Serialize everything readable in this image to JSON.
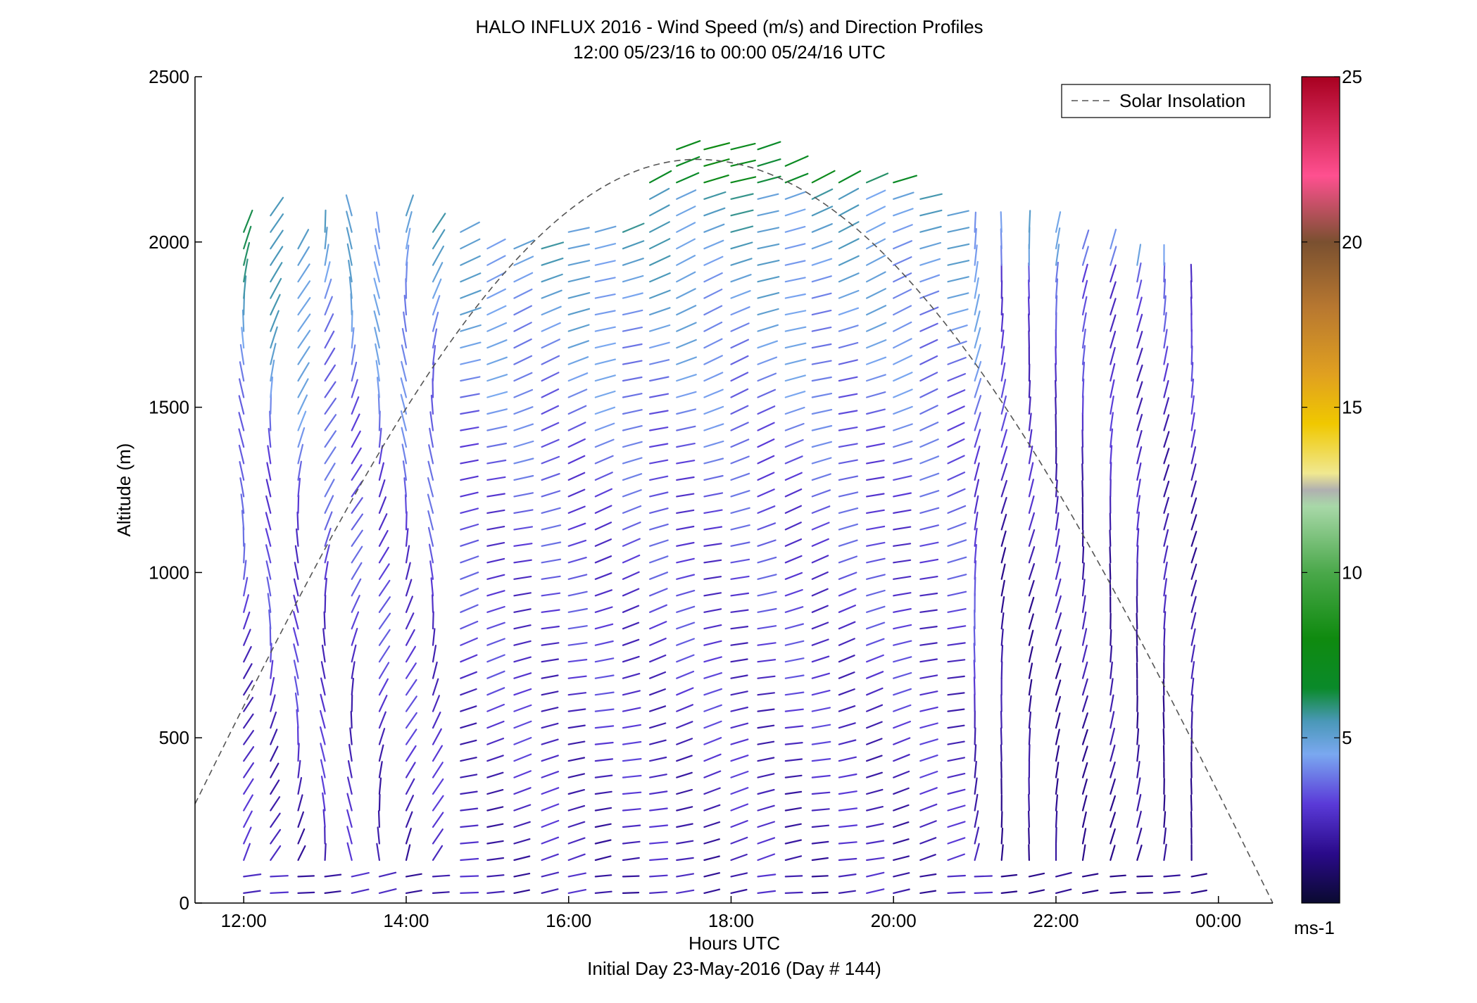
{
  "chart_data": {
    "type": "wind-barb-profile",
    "title": "HALO INFLUX 2016 - Wind Speed (m/s) and Direction Profiles",
    "subtitle": "12:00 05/23/16 to 00:00 05/24/16  UTC",
    "xlabel": "Hours UTC",
    "xlabel2": "Initial Day 23-May-2016 (Day # 144)",
    "ylabel": "Altitude (m)",
    "xlim_hours": [
      11.4,
      24.67
    ],
    "ylim": [
      0,
      2500
    ],
    "x_ticks": [
      {
        "value": 12,
        "label": "12:00"
      },
      {
        "value": 14,
        "label": "14:00"
      },
      {
        "value": 16,
        "label": "16:00"
      },
      {
        "value": 18,
        "label": "18:00"
      },
      {
        "value": 20,
        "label": "20:00"
      },
      {
        "value": 22,
        "label": "22:00"
      },
      {
        "value": 24,
        "label": "00:00"
      }
    ],
    "y_ticks": [
      {
        "value": 0,
        "label": "0"
      },
      {
        "value": 500,
        "label": "500"
      },
      {
        "value": 1000,
        "label": "1000"
      },
      {
        "value": 1500,
        "label": "1500"
      },
      {
        "value": 2000,
        "label": "2000"
      },
      {
        "value": 2500,
        "label": "2500"
      }
    ],
    "legend": {
      "label": "Solar Insolation",
      "placement": "top-right",
      "style": "dashed",
      "color": "#555555"
    },
    "solar_insolation": {
      "peak_hour": 17.58,
      "peak_altitude": 2250,
      "start_hour": 11.4,
      "start_altitude": 300,
      "end_hour": 24.67,
      "end_altitude": 0
    },
    "colorbar": {
      "range": [
        0,
        25
      ],
      "unit": "ms-1",
      "ticks": [
        {
          "value": 5,
          "label": "5"
        },
        {
          "value": 10,
          "label": "10"
        },
        {
          "value": 15,
          "label": "15"
        },
        {
          "value": 20,
          "label": "20"
        },
        {
          "value": 25,
          "label": "25"
        }
      ],
      "stops": [
        {
          "v": 0,
          "c": "#0a0a30"
        },
        {
          "v": 1.5,
          "c": "#2a0a8a"
        },
        {
          "v": 3,
          "c": "#5a3ad8"
        },
        {
          "v": 4.5,
          "c": "#7aa8f0"
        },
        {
          "v": 5.5,
          "c": "#4a98b8"
        },
        {
          "v": 6.5,
          "c": "#0a8a2a"
        },
        {
          "v": 8,
          "c": "#0f8a0f"
        },
        {
          "v": 10,
          "c": "#4aa84a"
        },
        {
          "v": 12,
          "c": "#a8d8a8"
        },
        {
          "v": 12.5,
          "c": "#b0b0b0"
        },
        {
          "v": 13,
          "c": "#f0e890"
        },
        {
          "v": 14.5,
          "c": "#f0c800"
        },
        {
          "v": 16,
          "c": "#e0a020"
        },
        {
          "v": 18,
          "c": "#b87830"
        },
        {
          "v": 20,
          "c": "#7a5030"
        },
        {
          "v": 22,
          "c": "#ff5090"
        },
        {
          "v": 25,
          "c": "#a80020"
        }
      ]
    },
    "profiles": {
      "hours": [
        12.0,
        12.33,
        12.67,
        13.0,
        13.33,
        13.67,
        14.0,
        14.33,
        14.67,
        15.0,
        15.33,
        15.67,
        16.0,
        16.33,
        16.67,
        17.0,
        17.33,
        17.67,
        18.0,
        18.33,
        18.67,
        19.0,
        19.33,
        19.67,
        20.0,
        20.33,
        20.67,
        21.0,
        21.33,
        21.67,
        22.0,
        22.33,
        22.67,
        23.0,
        23.33,
        23.67
      ],
      "altitude_step_m": 50,
      "max_altitude_per_profile_m": [
        2050,
        2100,
        2000,
        2050,
        2100,
        2050,
        2100,
        2050,
        2050,
        2000,
        2000,
        2000,
        2050,
        2050,
        2050,
        2200,
        2300,
        2300,
        2300,
        2300,
        2250,
        2200,
        2200,
        2200,
        2200,
        2150,
        2100,
        2050,
        2050,
        2050,
        2050,
        2000,
        2000,
        1950,
        1950,
        1900
      ],
      "speed_scale_note": "speed in m/s, direction in degrees (meteorological, from)"
    }
  }
}
